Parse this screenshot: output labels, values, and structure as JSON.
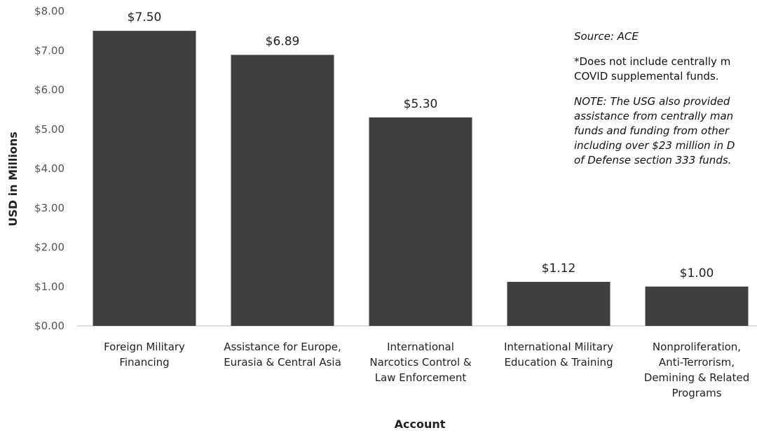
{
  "chart_data": {
    "type": "bar",
    "categories": [
      "Foreign Military Financing",
      "Assistance for Europe, Eurasia & Central Asia",
      "International Narcotics Control & Law Enforcement",
      "International Military Education & Training",
      "Nonproliferation, Anti-Terrorism, Demining & Related Programs"
    ],
    "category_label_lines": [
      [
        "Foreign Military",
        "Financing"
      ],
      [
        "Assistance for Europe,",
        "Eurasia & Central Asia"
      ],
      [
        "International",
        "Narcotics Control &",
        "Law Enforcement"
      ],
      [
        "International Military",
        "Education & Training"
      ],
      [
        "Nonproliferation,",
        "Anti-Terrorism,",
        "Demining & Related",
        "Programs"
      ]
    ],
    "values": [
      7.5,
      6.89,
      5.3,
      1.12,
      1.0
    ],
    "data_labels": [
      "$7.50",
      "$6.89",
      "$5.30",
      "$1.12",
      "$1.00"
    ],
    "ylim": [
      0,
      8
    ],
    "y_ticks": [
      "$0.00",
      "$1.00",
      "$2.00",
      "$3.00",
      "$4.00",
      "$5.00",
      "$6.00",
      "$7.00",
      "$8.00"
    ],
    "xlabel": "Account",
    "ylabel": "USD in Millions",
    "bar_color": "#3f3f3f",
    "grid": false
  },
  "notes": {
    "source": "Source: ACE",
    "star_line1": "*Does not include centrally m",
    "star_line2": "COVID supplemental funds.",
    "note_line1": "NOTE: The USG also provided",
    "note_line2": "assistance from centrally man",
    "note_line3": "funds and funding from other",
    "note_line4": "including over $23 million in D",
    "note_line5": "of Defense section 333 funds."
  }
}
